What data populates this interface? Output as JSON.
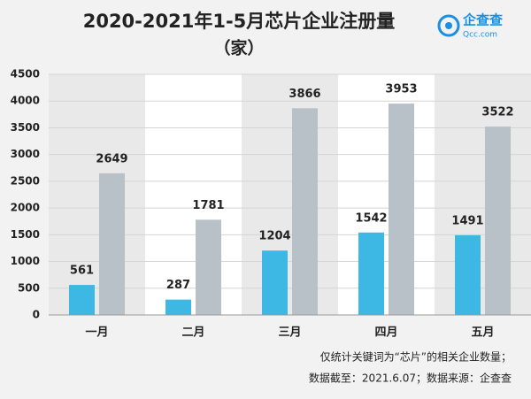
{
  "chart_data": {
    "type": "bar",
    "title": "2020-2021年1-5月芯片企业注册量",
    "subtitle": "（家）",
    "categories": [
      "一月",
      "二月",
      "三月",
      "四月",
      "五月"
    ],
    "series": [
      {
        "color": "#3db7e4",
        "values": [
          561,
          287,
          1204,
          1542,
          1491
        ]
      },
      {
        "color": "#b9c1c8",
        "values": [
          2649,
          1781,
          3866,
          3953,
          3522
        ]
      }
    ],
    "ylim": [
      0,
      4500
    ],
    "yticks": [
      0,
      500,
      1000,
      1500,
      2000,
      2500,
      3000,
      3500,
      4000,
      4500
    ],
    "grid": true,
    "annotations": [
      "仅统计关键词为“芯片”的相关企业数量；",
      "数据截至：2021.6.07；数据来源：企查查"
    ]
  },
  "logo": {
    "name": "企查查",
    "domain": "Qcc.com"
  }
}
